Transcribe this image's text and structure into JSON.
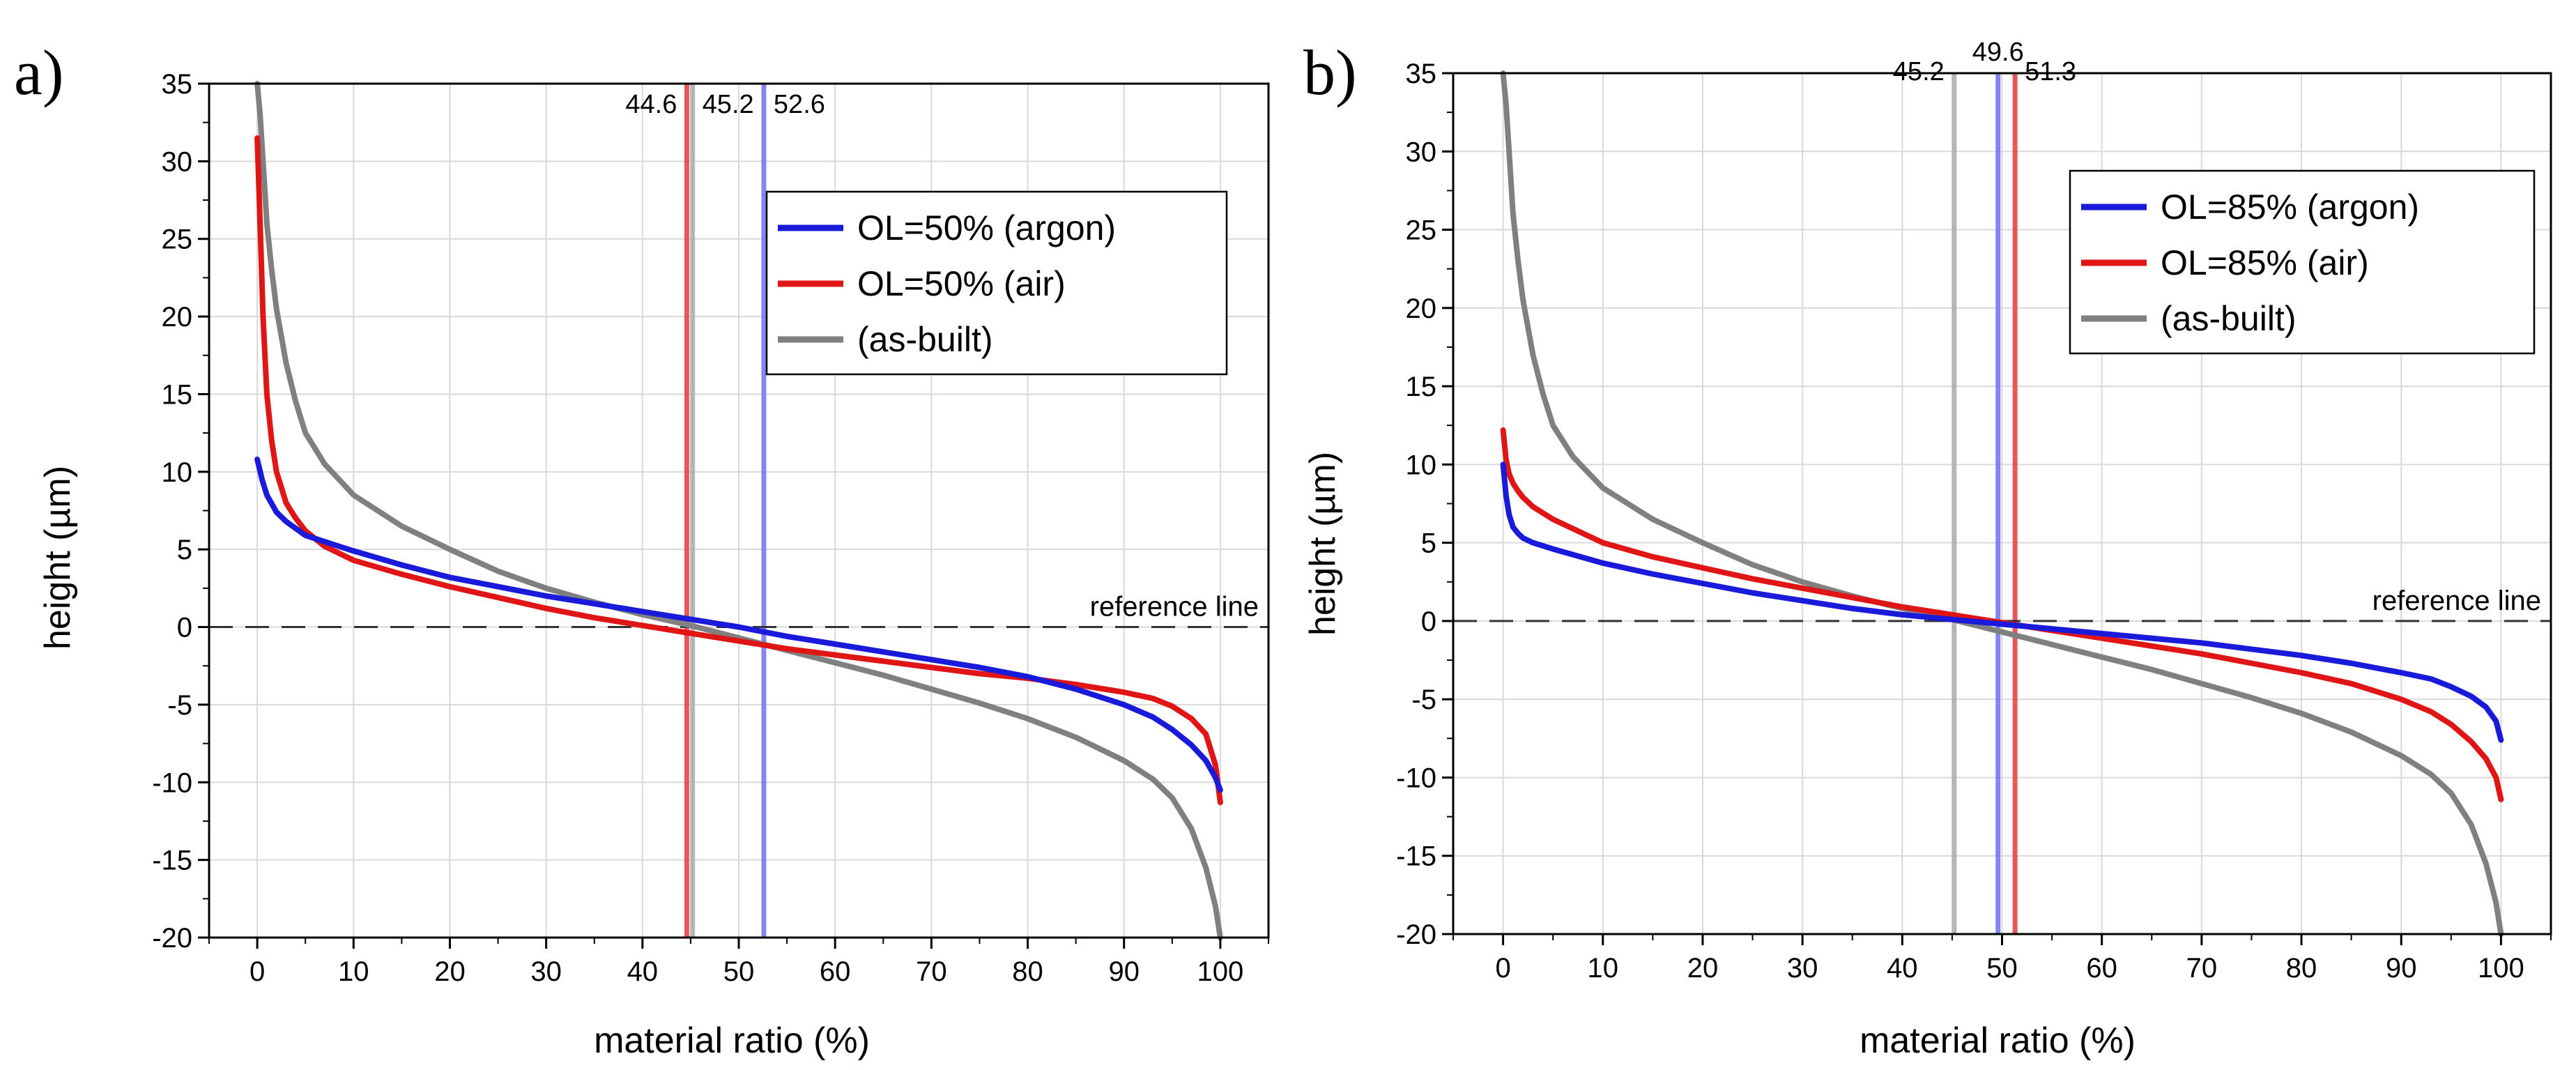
{
  "chart_data": [
    {
      "type": "line",
      "panel_label": "a)",
      "xlabel": "material ratio (%)",
      "ylabel": "height (µm)",
      "xlim": [
        -5,
        105
      ],
      "ylim": [
        -20,
        35
      ],
      "xticks": [
        0,
        10,
        20,
        30,
        40,
        50,
        60,
        70,
        80,
        90,
        100
      ],
      "yticks": [
        -20,
        -15,
        -10,
        -5,
        0,
        5,
        10,
        15,
        20,
        25,
        30,
        35
      ],
      "grid": true,
      "legend_position": "top-right",
      "reference_line": {
        "y": 0,
        "label": "reference line"
      },
      "vertical_lines": [
        {
          "x": 44.6,
          "label": "44.6",
          "color": "#e23a3a"
        },
        {
          "x": 45.2,
          "label": "45.2",
          "color": "#a9a9a9"
        },
        {
          "x": 52.6,
          "label": "52.6",
          "color": "#6f6ff0"
        }
      ],
      "series": [
        {
          "name": "OL=50% (argon)",
          "color": "#1a1adb",
          "x": [
            0,
            0.5,
            1,
            2,
            3,
            5,
            8,
            10,
            15,
            20,
            25,
            30,
            35,
            40,
            45,
            50,
            55,
            60,
            65,
            70,
            75,
            80,
            85,
            90,
            93,
            95,
            97,
            98.5,
            99.5,
            100
          ],
          "y": [
            10.8,
            9.5,
            8.5,
            7.4,
            6.8,
            5.9,
            5.3,
            4.9,
            4.0,
            3.2,
            2.6,
            2.0,
            1.5,
            1.0,
            0.5,
            0.0,
            -0.6,
            -1.1,
            -1.6,
            -2.1,
            -2.6,
            -3.2,
            -4.0,
            -5.0,
            -5.8,
            -6.6,
            -7.6,
            -8.6,
            -9.7,
            -10.5
          ]
        },
        {
          "name": "OL=50% (air)",
          "color": "#e01515",
          "x": [
            0,
            0.3,
            0.6,
            1,
            1.5,
            2,
            3,
            4,
            5,
            7,
            10,
            15,
            20,
            25,
            30,
            35,
            40,
            45,
            50,
            55,
            60,
            65,
            70,
            75,
            80,
            85,
            90,
            93,
            95,
            97,
            98.5,
            99.5,
            100
          ],
          "y": [
            31.5,
            26,
            20,
            15,
            12,
            10,
            8,
            7,
            6.2,
            5.2,
            4.3,
            3.4,
            2.6,
            1.9,
            1.2,
            0.6,
            0.1,
            -0.4,
            -0.9,
            -1.4,
            -1.8,
            -2.2,
            -2.6,
            -3.0,
            -3.3,
            -3.7,
            -4.2,
            -4.6,
            -5.1,
            -5.9,
            -6.9,
            -8.9,
            -11.3
          ]
        },
        {
          "name": "(as-built)",
          "color": "#808080",
          "x": [
            0,
            0.3,
            0.6,
            1,
            1.5,
            2,
            3,
            4,
            5,
            7,
            10,
            15,
            20,
            25,
            30,
            35,
            40,
            45,
            50,
            55,
            60,
            65,
            70,
            75,
            80,
            85,
            90,
            93,
            95,
            97,
            98.5,
            99.5,
            100
          ],
          "y": [
            35,
            33,
            30,
            26,
            23,
            20.5,
            17,
            14.5,
            12.5,
            10.5,
            8.5,
            6.5,
            5.0,
            3.6,
            2.5,
            1.6,
            0.8,
            0.1,
            -0.7,
            -1.5,
            -2.3,
            -3.1,
            -4.0,
            -4.9,
            -5.9,
            -7.1,
            -8.6,
            -9.8,
            -11,
            -13,
            -15.5,
            -18,
            -20
          ]
        }
      ]
    },
    {
      "type": "line",
      "panel_label": "b)",
      "xlabel": "material ratio (%)",
      "ylabel": "height (µm)",
      "xlim": [
        -5,
        105
      ],
      "ylim": [
        -20,
        35
      ],
      "xticks": [
        0,
        10,
        20,
        30,
        40,
        50,
        60,
        70,
        80,
        90,
        100
      ],
      "yticks": [
        -20,
        -15,
        -10,
        -5,
        0,
        5,
        10,
        15,
        20,
        25,
        30,
        35
      ],
      "grid": true,
      "legend_position": "top-right",
      "reference_line": {
        "y": 0,
        "label": "reference line"
      },
      "vertical_lines": [
        {
          "x": 45.2,
          "label": "45.2",
          "color": "#a9a9a9"
        },
        {
          "x": 49.6,
          "label": "49.6",
          "color": "#6f6ff0"
        },
        {
          "x": 51.3,
          "label": "51.3",
          "color": "#e23a3a"
        }
      ],
      "series": [
        {
          "name": "OL=85% (argon)",
          "color": "#1a1adb",
          "x": [
            0,
            0.3,
            0.6,
            1,
            1.5,
            2,
            3,
            5,
            10,
            15,
            20,
            25,
            30,
            35,
            40,
            45,
            50,
            55,
            60,
            65,
            70,
            75,
            80,
            85,
            90,
            93,
            95,
            97,
            98.5,
            99.5,
            100
          ],
          "y": [
            10,
            8,
            6.8,
            6.0,
            5.6,
            5.3,
            5.0,
            4.6,
            3.7,
            3.0,
            2.4,
            1.8,
            1.3,
            0.8,
            0.4,
            0.1,
            -0.2,
            -0.5,
            -0.8,
            -1.1,
            -1.4,
            -1.8,
            -2.2,
            -2.7,
            -3.3,
            -3.7,
            -4.2,
            -4.8,
            -5.5,
            -6.4,
            -7.6
          ]
        },
        {
          "name": "OL=85% (air)",
          "color": "#e01515",
          "x": [
            0,
            0.3,
            0.6,
            1,
            1.5,
            2,
            3,
            5,
            10,
            15,
            20,
            25,
            30,
            35,
            40,
            45,
            50,
            55,
            60,
            65,
            70,
            75,
            80,
            85,
            90,
            93,
            95,
            97,
            98.5,
            99.5,
            100
          ],
          "y": [
            12.2,
            10.3,
            9.4,
            8.8,
            8.3,
            7.9,
            7.3,
            6.5,
            5.0,
            4.1,
            3.4,
            2.7,
            2.1,
            1.5,
            0.9,
            0.4,
            -0.1,
            -0.6,
            -1.1,
            -1.6,
            -2.1,
            -2.7,
            -3.3,
            -4.0,
            -5.0,
            -5.8,
            -6.6,
            -7.7,
            -8.8,
            -10,
            -11.4
          ]
        },
        {
          "name": "(as-built)",
          "color": "#808080",
          "x": [
            0,
            0.3,
            0.6,
            1,
            1.5,
            2,
            3,
            4,
            5,
            7,
            10,
            15,
            20,
            25,
            30,
            35,
            40,
            45,
            50,
            55,
            60,
            65,
            70,
            75,
            80,
            85,
            90,
            93,
            95,
            97,
            98.5,
            99.5,
            100
          ],
          "y": [
            35,
            33,
            30,
            26,
            23,
            20.5,
            17,
            14.5,
            12.5,
            10.5,
            8.5,
            6.5,
            5.0,
            3.6,
            2.5,
            1.6,
            0.8,
            0.1,
            -0.7,
            -1.5,
            -2.3,
            -3.1,
            -4.0,
            -4.9,
            -5.9,
            -7.1,
            -8.6,
            -9.8,
            -11,
            -13,
            -15.5,
            -18,
            -20
          ]
        }
      ]
    }
  ]
}
